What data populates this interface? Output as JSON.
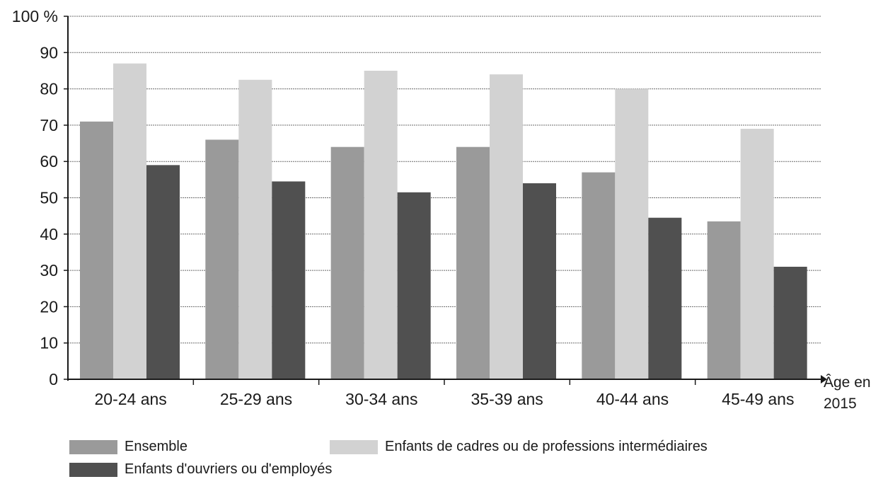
{
  "chart_data": {
    "type": "bar",
    "categories": [
      "20-24 ans",
      "25-29 ans",
      "30-34 ans",
      "35-39 ans",
      "40-44 ans",
      "45-49 ans"
    ],
    "series": [
      {
        "name": "Ensemble",
        "color": "#9a9a9a",
        "values": [
          71,
          66,
          64,
          64,
          57,
          43.5
        ]
      },
      {
        "name": "Enfants de cadres ou de professions intermédiaires",
        "color": "#d2d2d2",
        "values": [
          87,
          82.5,
          85,
          84,
          80,
          69
        ]
      },
      {
        "name": "Enfants d'ouvriers ou d'employés",
        "color": "#505050",
        "values": [
          59,
          54.5,
          51.5,
          54,
          44.5,
          31
        ]
      }
    ],
    "y_ticks": [
      "0",
      "10",
      "20",
      "30",
      "40",
      "50",
      "60",
      "70",
      "80",
      "90",
      "100 %"
    ],
    "x_axis_title": [
      "Âge en",
      "2015"
    ],
    "ylim": [
      0,
      100
    ],
    "grid": true,
    "legend_position": "bottom"
  }
}
